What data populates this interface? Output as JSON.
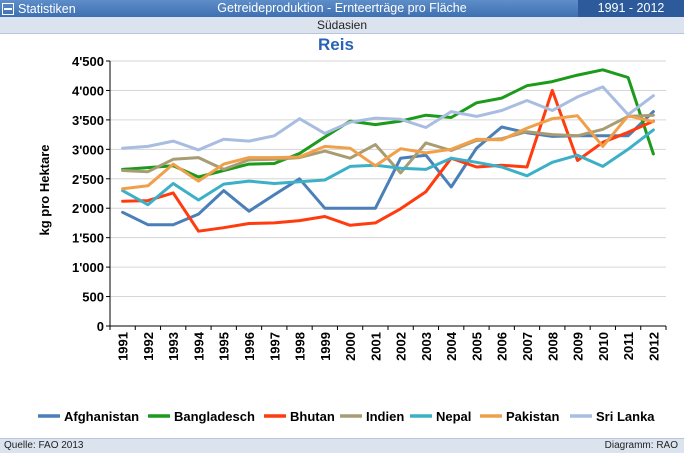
{
  "header": {
    "left_label": "Statistiken",
    "center_title": "Getreideproduktion - Ernteerträge pro Fläche",
    "right_label": "1991 - 2012"
  },
  "subheader": "Südasien",
  "footer": {
    "source": "Quelle: FAO 2013",
    "credit": "Diagramm: RAO"
  },
  "chart_data": {
    "type": "line",
    "title": "Reis",
    "xlabel": "",
    "ylabel": "kg pro Hektare",
    "ylim": [
      0,
      4500
    ],
    "yticks": [
      0,
      500,
      1000,
      1500,
      2000,
      2500,
      3000,
      3500,
      4000,
      4500
    ],
    "ytick_labels": [
      "0",
      "500",
      "1'000",
      "1'500",
      "2'000",
      "2'500",
      "3'000",
      "3'500",
      "4'000",
      "4'500"
    ],
    "categories": [
      "1991",
      "1992",
      "1993",
      "1994",
      "1995",
      "1996",
      "1997",
      "1998",
      "1999",
      "2000",
      "2001",
      "2002",
      "2003",
      "2004",
      "2005",
      "2006",
      "2007",
      "2008",
      "2009",
      "2010",
      "2011",
      "2012"
    ],
    "grid": true,
    "legend_position": "bottom",
    "series": [
      {
        "name": "Afghanistan",
        "color": "#4a7fb8",
        "values": [
          1930,
          1720,
          1720,
          1900,
          2300,
          1950,
          2230,
          2500,
          2000,
          2000,
          2000,
          2850,
          2900,
          2360,
          3020,
          3380,
          3280,
          3220,
          3230,
          3230,
          3230,
          3640
        ]
      },
      {
        "name": "Bangladesch",
        "color": "#1b9a1b",
        "values": [
          2660,
          2690,
          2720,
          2530,
          2640,
          2750,
          2760,
          2930,
          3210,
          3480,
          3420,
          3480,
          3580,
          3540,
          3790,
          3870,
          4080,
          4150,
          4260,
          4350,
          4220,
          2920
        ]
      },
      {
        "name": "Bhutan",
        "color": "#ff3b0f",
        "values": [
          2120,
          2130,
          2260,
          1610,
          1670,
          1740,
          1750,
          1790,
          1860,
          1710,
          1750,
          1990,
          2280,
          2850,
          2700,
          2730,
          2700,
          4000,
          2810,
          3120,
          3290,
          3480
        ]
      },
      {
        "name": "Indien",
        "color": "#a89c73",
        "values": [
          2640,
          2620,
          2830,
          2860,
          2660,
          2820,
          2830,
          2860,
          2970,
          2850,
          3080,
          2600,
          3110,
          2980,
          3150,
          3180,
          3300,
          3250,
          3230,
          3340,
          3560,
          3580
        ]
      },
      {
        "name": "Nepal",
        "color": "#3cb0c6",
        "values": [
          2300,
          2060,
          2420,
          2140,
          2410,
          2460,
          2420,
          2450,
          2480,
          2710,
          2730,
          2680,
          2660,
          2850,
          2780,
          2700,
          2550,
          2780,
          2900,
          2710,
          3000,
          3330
        ]
      },
      {
        "name": "Pakistan",
        "color": "#f0a04a",
        "values": [
          2330,
          2380,
          2750,
          2460,
          2750,
          2860,
          2860,
          2870,
          3050,
          3020,
          2720,
          3010,
          2940,
          3000,
          3170,
          3160,
          3360,
          3520,
          3570,
          3050,
          3570,
          3470
        ]
      },
      {
        "name": "Sri Lanka",
        "color": "#a8bde0",
        "values": [
          3020,
          3050,
          3140,
          2990,
          3170,
          3140,
          3230,
          3520,
          3270,
          3460,
          3530,
          3510,
          3370,
          3640,
          3560,
          3660,
          3830,
          3660,
          3890,
          4060,
          3590,
          3910
        ]
      }
    ]
  }
}
